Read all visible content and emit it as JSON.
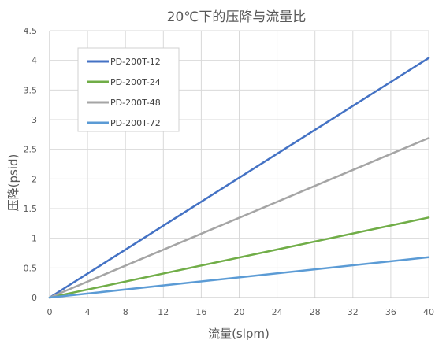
{
  "chart_data": {
    "type": "line",
    "title": "20℃下的压降与流量比",
    "xlabel": "流量(slpm)",
    "ylabel": "压降(psid)",
    "xlim": [
      0,
      40
    ],
    "ylim": [
      0,
      4.5
    ],
    "x_ticks": [
      "0",
      "4",
      "8",
      "12",
      "16",
      "20",
      "24",
      "28",
      "32",
      "36",
      "40"
    ],
    "y_ticks": [
      "0",
      "0.5",
      "1",
      "1.5",
      "2",
      "2.5",
      "3",
      "3.5",
      "4",
      "4.5"
    ],
    "grid": true,
    "legend_position": "top-left",
    "series": [
      {
        "name": "PD-200T-12",
        "color": "#4472C4",
        "x": [
          0,
          40
        ],
        "y": [
          0,
          4.04
        ]
      },
      {
        "name": "PD-200T-24",
        "color": "#70AD47",
        "x": [
          0,
          40
        ],
        "y": [
          0,
          1.35
        ]
      },
      {
        "name": "PD-200T-48",
        "color": "#A5A5A5",
        "x": [
          0,
          40
        ],
        "y": [
          0,
          2.69
        ]
      },
      {
        "name": "PD-200T-72",
        "color": "#5B9BD5",
        "x": [
          0,
          40
        ],
        "y": [
          0,
          0.68
        ]
      }
    ]
  }
}
